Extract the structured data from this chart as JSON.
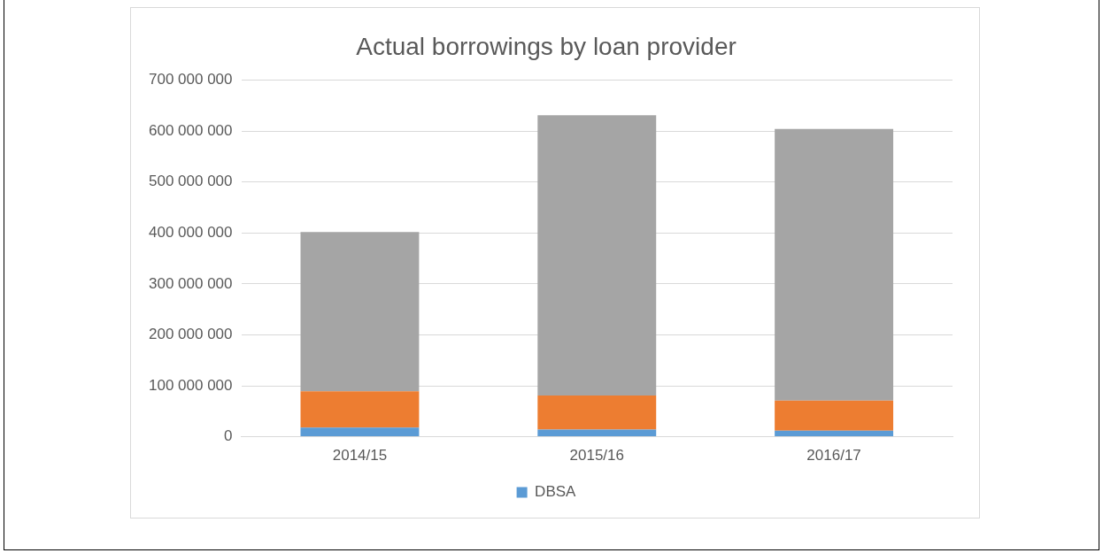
{
  "chart_data": {
    "type": "bar",
    "title": "Actual borrowings by loan provider",
    "categories": [
      "2014/15",
      "2015/16",
      "2016/17"
    ],
    "stacked": true,
    "series": [
      {
        "name": "DBSA",
        "color": "#5b9bd5",
        "values": [
          18000000,
          14000000,
          12000000
        ]
      },
      {
        "color": "#ed7d31",
        "values": [
          71000000,
          67000000,
          59000000
        ]
      },
      {
        "color": "#a5a5a5",
        "values": [
          313000000,
          550000000,
          533000000
        ]
      }
    ],
    "ylim": [
      0,
      700000000
    ],
    "yticks": [
      {
        "value": 0,
        "label": "0"
      },
      {
        "value": 100000000,
        "label": "100 000 000"
      },
      {
        "value": 200000000,
        "label": "200 000 000"
      },
      {
        "value": 300000000,
        "label": "300 000 000"
      },
      {
        "value": 400000000,
        "label": "400 000 000"
      },
      {
        "value": 500000000,
        "label": "500 000 000"
      },
      {
        "value": 600000000,
        "label": "600 000 000"
      },
      {
        "value": 700000000,
        "label": "700 000 000"
      }
    ],
    "grid": "y",
    "legend": "bottom"
  }
}
